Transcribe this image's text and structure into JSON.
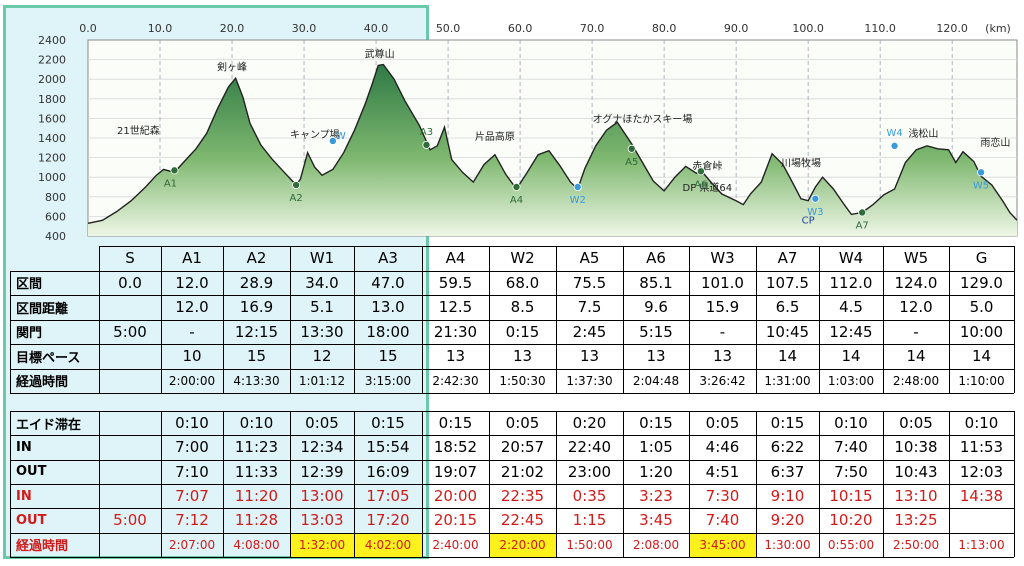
{
  "chart_data": {
    "type": "area",
    "xlabel": "",
    "ylabel": "",
    "x_unit": "(km)",
    "xlim": [
      0,
      129
    ],
    "ylim": [
      400,
      2400
    ],
    "x_ticks": [
      "0.0",
      "10.0",
      "20.0",
      "30.0",
      "40.0",
      "50.0",
      "60.0",
      "70.0",
      "80.0",
      "90.0",
      "100.0",
      "110.0",
      "120.0"
    ],
    "y_ticks": [
      "400",
      "600",
      "800",
      "1000",
      "1200",
      "1400",
      "1600",
      "1800",
      "2000",
      "2200",
      "2400"
    ],
    "grid": true,
    "colors": {
      "fill_top": "#2f7a45",
      "fill_bottom": "#eef6e6",
      "line": "#222222",
      "aid": "#2f6b3a",
      "water": "#3a9ad9"
    },
    "profile": [
      [
        0,
        530
      ],
      [
        2,
        560
      ],
      [
        4,
        650
      ],
      [
        6,
        760
      ],
      [
        8,
        900
      ],
      [
        9.5,
        1020
      ],
      [
        10.5,
        1080
      ],
      [
        12,
        1050
      ],
      [
        13.5,
        1170
      ],
      [
        15,
        1290
      ],
      [
        16.5,
        1450
      ],
      [
        18,
        1700
      ],
      [
        19.5,
        1920
      ],
      [
        20.5,
        2010
      ],
      [
        21.5,
        1820
      ],
      [
        22.5,
        1550
      ],
      [
        24,
        1330
      ],
      [
        25.5,
        1190
      ],
      [
        27,
        1070
      ],
      [
        28.9,
        920
      ],
      [
        29.5,
        980
      ],
      [
        30.5,
        1250
      ],
      [
        31.5,
        1100
      ],
      [
        32.5,
        1020
      ],
      [
        34,
        1080
      ],
      [
        35.5,
        1250
      ],
      [
        37,
        1480
      ],
      [
        38.5,
        1750
      ],
      [
        39.5,
        1960
      ],
      [
        40.3,
        2140
      ],
      [
        41,
        2150
      ],
      [
        42.5,
        2000
      ],
      [
        44,
        1780
      ],
      [
        46,
        1530
      ],
      [
        47.5,
        1280
      ],
      [
        48.5,
        1320
      ],
      [
        49.5,
        1510
      ],
      [
        50.5,
        1180
      ],
      [
        52,
        1050
      ],
      [
        53.5,
        950
      ],
      [
        55,
        1130
      ],
      [
        56.5,
        1230
      ],
      [
        58,
        1030
      ],
      [
        59.5,
        880
      ],
      [
        61,
        1050
      ],
      [
        62.5,
        1230
      ],
      [
        64,
        1270
      ],
      [
        65.5,
        1120
      ],
      [
        67,
        950
      ],
      [
        68,
        880
      ],
      [
        69,
        1090
      ],
      [
        70.5,
        1320
      ],
      [
        72,
        1480
      ],
      [
        73.5,
        1560
      ],
      [
        75.5,
        1340
      ],
      [
        77,
        1150
      ],
      [
        78.5,
        960
      ],
      [
        80,
        860
      ],
      [
        81.5,
        1000
      ],
      [
        83,
        1110
      ],
      [
        84.5,
        1040
      ],
      [
        85.1,
        1070
      ],
      [
        86.5,
        950
      ],
      [
        88,
        830
      ],
      [
        90,
        760
      ],
      [
        91,
        720
      ],
      [
        92,
        830
      ],
      [
        93.5,
        950
      ],
      [
        95,
        1240
      ],
      [
        96.5,
        1130
      ],
      [
        98,
        920
      ],
      [
        99,
        780
      ],
      [
        100,
        760
      ],
      [
        101,
        900
      ],
      [
        102,
        1000
      ],
      [
        103.5,
        880
      ],
      [
        105,
        720
      ],
      [
        106,
        620
      ],
      [
        107.5,
        640
      ],
      [
        109,
        720
      ],
      [
        110.5,
        820
      ],
      [
        112,
        880
      ],
      [
        113.5,
        1150
      ],
      [
        115,
        1280
      ],
      [
        116.5,
        1320
      ],
      [
        118,
        1290
      ],
      [
        119.5,
        1280
      ],
      [
        120.5,
        1150
      ],
      [
        121.5,
        1260
      ],
      [
        123,
        1160
      ],
      [
        124,
        1010
      ],
      [
        125.5,
        920
      ],
      [
        127,
        760
      ],
      [
        128,
        640
      ],
      [
        129,
        560
      ]
    ],
    "places": [
      {
        "name": "剣ヶ峰",
        "km": 20.0,
        "alt": 2090
      },
      {
        "name": "武尊山",
        "km": 40.5,
        "alt": 2220
      },
      {
        "name": "キャンプ場",
        "km": 31.5,
        "alt": 1400
      },
      {
        "name": "21世紀森",
        "km": 7.0,
        "alt": 1440
      },
      {
        "name": "片品高原",
        "km": 56.5,
        "alt": 1380
      },
      {
        "name": "オグナほたかスキー場",
        "km": 77.0,
        "alt": 1560
      },
      {
        "name": "赤倉峠",
        "km": 86.0,
        "alt": 1080
      },
      {
        "name": "川場牧場",
        "km": 99.0,
        "alt": 1110
      },
      {
        "name": "浅松山",
        "km": 116.0,
        "alt": 1410
      },
      {
        "name": "雨恋山",
        "km": 126.0,
        "alt": 1320
      },
      {
        "name": "DP 県道64",
        "km": 86.0,
        "alt": 860
      },
      {
        "name": "CP",
        "km": 100.0,
        "alt": 530
      }
    ],
    "markers": [
      {
        "label": "A1",
        "km": 12.0,
        "alt": 1070,
        "kind": "aid"
      },
      {
        "label": "A2",
        "km": 28.9,
        "alt": 920,
        "kind": "aid"
      },
      {
        "label": "W",
        "km": 34.0,
        "alt": 1370,
        "kind": "water"
      },
      {
        "label": "A3",
        "km": 47.0,
        "alt": 1330,
        "kind": "aid"
      },
      {
        "label": "A4",
        "km": 59.5,
        "alt": 900,
        "kind": "aid"
      },
      {
        "label": "W2",
        "km": 68.0,
        "alt": 900,
        "kind": "water"
      },
      {
        "label": "A5",
        "km": 75.5,
        "alt": 1290,
        "kind": "aid"
      },
      {
        "label": "A6",
        "km": 85.1,
        "alt": 1060,
        "kind": "aid"
      },
      {
        "label": "W3",
        "km": 101.0,
        "alt": 780,
        "kind": "water"
      },
      {
        "label": "A7",
        "km": 107.5,
        "alt": 640,
        "kind": "aid"
      },
      {
        "label": "W4",
        "km": 112.0,
        "alt": 1320,
        "kind": "water"
      },
      {
        "label": "W5",
        "km": 124.0,
        "alt": 1050,
        "kind": "water"
      }
    ]
  },
  "table1": {
    "columns": [
      "S",
      "A1",
      "A2",
      "W1",
      "A3",
      "A4",
      "W2",
      "A5",
      "A6",
      "W3",
      "A7",
      "W4",
      "W5",
      "G"
    ],
    "rows": [
      {
        "label": "区間",
        "values": [
          "0.0",
          "12.0",
          "28.9",
          "34.0",
          "47.0",
          "59.5",
          "68.0",
          "75.5",
          "85.1",
          "101.0",
          "107.5",
          "112.0",
          "124.0",
          "129.0"
        ]
      },
      {
        "label": "区間距離",
        "values": [
          "",
          "12.0",
          "16.9",
          "5.1",
          "13.0",
          "12.5",
          "8.5",
          "7.5",
          "9.6",
          "15.9",
          "6.5",
          "4.5",
          "12.0",
          "5.0"
        ]
      },
      {
        "label": "関門",
        "values": [
          "5:00",
          "-",
          "12:15",
          "13:30",
          "18:00",
          "21:30",
          "0:15",
          "2:45",
          "5:15",
          "-",
          "10:45",
          "12:45",
          "-",
          "10:00"
        ]
      },
      {
        "label": "目標ペース",
        "values": [
          "",
          "10",
          "15",
          "12",
          "15",
          "13",
          "13",
          "13",
          "13",
          "13",
          "14",
          "14",
          "14",
          "14"
        ]
      },
      {
        "label": "経過時間",
        "values": [
          "",
          "2:00:00",
          "4:13:30",
          "1:01:12",
          "3:15:00",
          "2:42:30",
          "1:50:30",
          "1:37:30",
          "2:04:48",
          "3:26:42",
          "1:31:00",
          "1:03:00",
          "2:48:00",
          "1:10:00"
        ]
      }
    ]
  },
  "table2": {
    "rows": [
      {
        "label": "エイド滞在",
        "color": "black",
        "values": [
          "",
          "0:10",
          "0:10",
          "0:05",
          "0:15",
          "0:15",
          "0:05",
          "0:20",
          "0:15",
          "0:05",
          "0:15",
          "0:10",
          "0:05",
          "0:10"
        ]
      },
      {
        "label": "IN",
        "color": "black",
        "values": [
          "",
          "7:00",
          "11:23",
          "12:34",
          "15:54",
          "18:52",
          "20:57",
          "22:40",
          "1:05",
          "4:46",
          "6:22",
          "7:40",
          "10:38",
          "11:53"
        ]
      },
      {
        "label": "OUT",
        "color": "black",
        "values": [
          "",
          "7:10",
          "11:33",
          "12:39",
          "16:09",
          "19:07",
          "21:02",
          "23:00",
          "1:20",
          "4:51",
          "6:37",
          "7:50",
          "10:43",
          "12:03"
        ]
      },
      {
        "label": "IN",
        "color": "red",
        "values": [
          "",
          "7:07",
          "11:20",
          "13:00",
          "17:05",
          "20:00",
          "22:35",
          "0:35",
          "3:23",
          "7:30",
          "9:10",
          "10:15",
          "13:10",
          "14:38"
        ]
      },
      {
        "label": "OUT",
        "color": "red",
        "values": [
          "5:00",
          "7:12",
          "11:28",
          "13:03",
          "17:20",
          "20:15",
          "22:45",
          "1:15",
          "3:45",
          "7:40",
          "9:20",
          "10:20",
          "13:25",
          ""
        ]
      },
      {
        "label": "経過時間",
        "color": "red",
        "values": [
          "",
          "2:07:00",
          "4:08:00",
          "1:32:00",
          "4:02:00",
          "2:40:00",
          "2:20:00",
          "1:50:00",
          "2:08:00",
          "3:45:00",
          "1:30:00",
          "0:55:00",
          "2:50:00",
          "1:13:00"
        ]
      }
    ],
    "highlight_color": "#fff21c",
    "highlighted_columns": [
      "W1",
      "A3",
      "W2",
      "W3"
    ]
  }
}
